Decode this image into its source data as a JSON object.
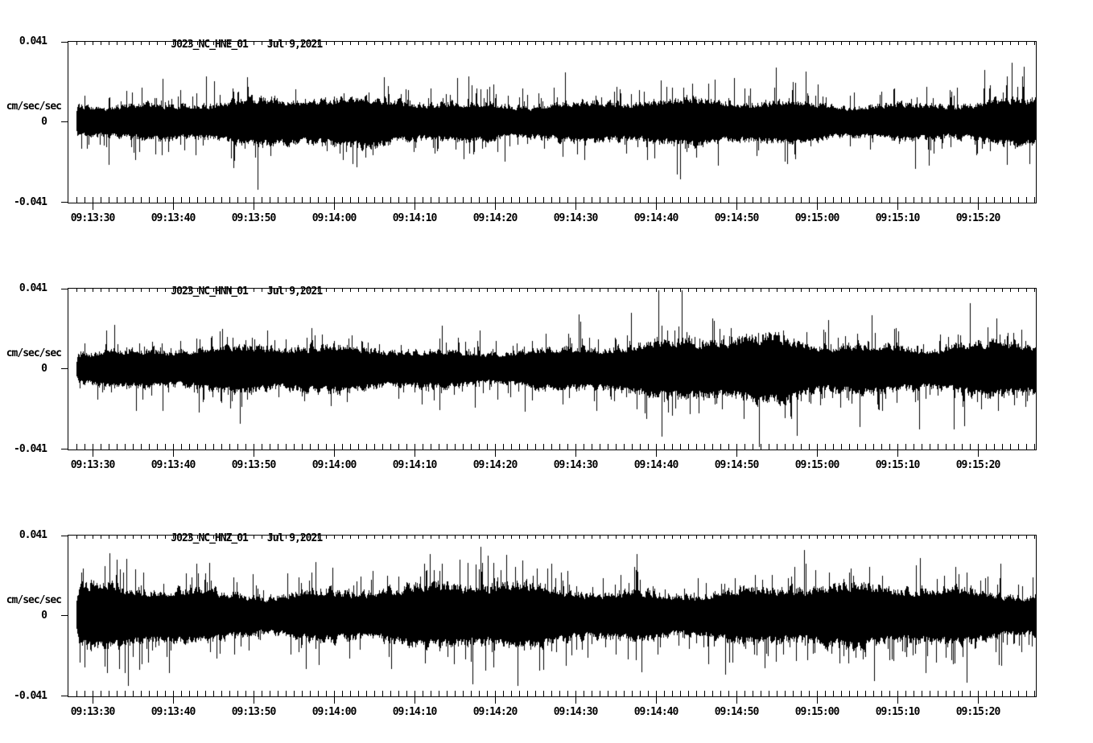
{
  "page": {
    "background": "#ffffff",
    "ink": "#000000"
  },
  "chart_data": {
    "type": "seismogram",
    "station": "J023",
    "network": "NC",
    "date": "Jul 9,2021",
    "y_axis": {
      "top_label": "0.041",
      "zero_label": "0",
      "bottom_label": "-0.041",
      "units": "cm/sec/sec",
      "ymin": -0.041,
      "ymax": 0.041
    },
    "x_axis": {
      "tick_labels": [
        "09:13:30",
        "09:13:40",
        "09:13:50",
        "09:14:00",
        "09:14:10",
        "09:14:20",
        "09:14:30",
        "09:14:40",
        "09:14:50",
        "09:15:00",
        "09:15:10",
        "09:15:20"
      ],
      "minor_tick_interval_seconds": 1,
      "major_tick_interval_seconds": 10
    },
    "panels": [
      {
        "title": "J023_NC_HNE_01",
        "date": "Jul 9,2021",
        "channel": "HNE",
        "envelope_cm_s2": [
          0.01,
          0.0097,
          0.0101,
          0.0105,
          0.0099,
          0.0103,
          0.0107,
          0.0099,
          0.0094,
          0.0094,
          0.0098,
          0.0104,
          0.0106
        ],
        "spike_prob": 0.1,
        "spike_gain": 1.0,
        "rare_prob": 0.012,
        "rare_gain": 1.8,
        "seed": 10709
      },
      {
        "title": "J023_NC_HNN_01",
        "date": "Jul 9,2021",
        "channel": "HNN",
        "envelope_cm_s2": [
          0.0096,
          0.0101,
          0.0097,
          0.01,
          0.0104,
          0.0102,
          0.0099,
          0.0104,
          0.014,
          0.016,
          0.0131,
          0.0117,
          0.0121
        ],
        "spike_prob": 0.09,
        "spike_gain": 0.8,
        "rare_prob": 0.012,
        "rare_gain": 1.6,
        "seed": 20709
      },
      {
        "title": "J023_NC_HNZ_01",
        "date": "Jul 9,2021",
        "channel": "HNZ",
        "envelope_cm_s2": [
          0.0132,
          0.0137,
          0.0129,
          0.0135,
          0.013,
          0.0136,
          0.0139,
          0.0134,
          0.0129,
          0.0136,
          0.013,
          0.0135,
          0.0131
        ],
        "spike_prob": 0.1,
        "spike_gain": 0.95,
        "rare_prob": 0.015,
        "rare_gain": 1.5,
        "seed": 30709
      }
    ]
  }
}
